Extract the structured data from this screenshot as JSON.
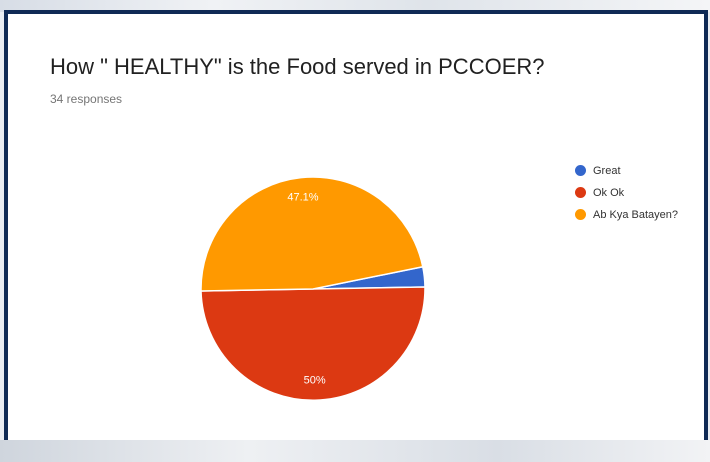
{
  "card": {
    "title": "How \" HEALTHY\" is the Food served in PCCOER?",
    "subtitle": "34 responses"
  },
  "chart_data": {
    "type": "pie",
    "title": "How \" HEALTHY\" is the Food served in PCCOER?",
    "subtitle": "34 responses",
    "categories": [
      "Great",
      "Ok Ok",
      "Ab Kya Batayen?"
    ],
    "values": [
      2.9,
      50.0,
      47.1
    ],
    "colors": [
      "#3366cc",
      "#dc3912",
      "#ff9900"
    ],
    "data_labels": [
      "",
      "50%",
      "47.1%"
    ],
    "legend": "right"
  }
}
